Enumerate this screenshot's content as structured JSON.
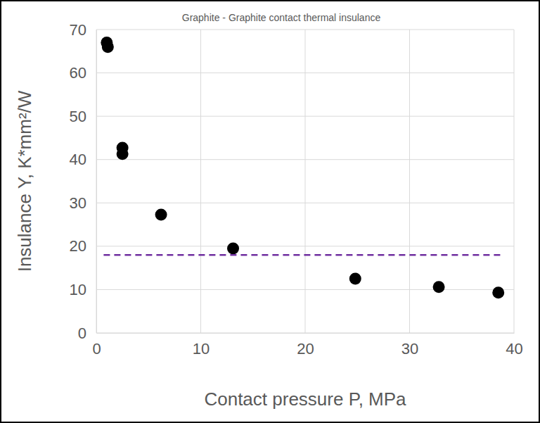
{
  "chart_data": {
    "type": "scatter",
    "title": "Graphite - Graphite contact thermal insulance",
    "x_label": "Contact pressure P, MPa",
    "y_label": "Insulance Y, K*mm²/W",
    "series": [
      {
        "type": "scatter",
        "color": "#000000",
        "marker": "circle",
        "x": [
          1.0,
          1.1,
          2.5,
          2.5,
          6.2,
          13.1,
          24.8,
          32.8,
          38.5
        ],
        "values": [
          67,
          66,
          42.7,
          41.3,
          27.3,
          19.5,
          12.5,
          10.6,
          9.3
        ]
      },
      {
        "type": "line",
        "color": "#7030a0",
        "line_style": "dashed",
        "x": [
          0.7,
          39
        ],
        "values": [
          18,
          18
        ]
      }
    ],
    "xlim": [
      0,
      40
    ],
    "xticks": [
      0,
      10,
      20,
      30,
      40
    ],
    "ylim": [
      0,
      70
    ],
    "yticks": [
      0,
      10,
      20,
      30,
      40,
      50,
      60,
      70
    ],
    "grid": true
  }
}
